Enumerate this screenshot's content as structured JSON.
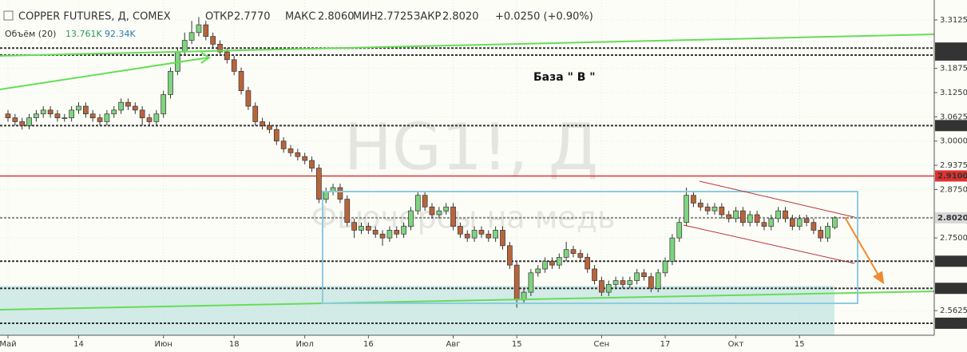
{
  "chart_data": {
    "type": "candlestick",
    "title": "COPPER FUTURES, Д, COMEX",
    "ohlc_labels": {
      "open": "ОТКР",
      "high": "МАКС",
      "low": "МИН",
      "close": "ЗАКР"
    },
    "last_value_labels": {
      "open": "2.7770",
      "high": "2.8060",
      "low": "2.7725",
      "close": "2.8020",
      "change": "+0.0250 (+0.90%)"
    },
    "volume_label": "Объём (20)",
    "volume_value_labels": [
      "13.761K",
      "92.34K"
    ],
    "watermark": [
      "HG1!, Д",
      "Фьючерсы на медь"
    ],
    "annotation": "База  \" В \"",
    "up_color": "#7fd47f",
    "down_color": "#b9643b",
    "ylim": [
      2.499,
      3.364
    ],
    "yticks": [
      3.3125,
      3.1875,
      {
        "value": 3.125,
        "label": "3.1250"
      },
      3.0625,
      {
        "value": 3.0,
        "label": "3.0000"
      },
      2.9375,
      {
        "value": 2.875,
        "label": "2.8750"
      },
      {
        "value": 2.75,
        "label": "2.7500"
      },
      2.5625
    ],
    "levels": [
      {
        "value": 3.24,
        "label": "3.2400",
        "color": "#333"
      },
      {
        "value": 3.222,
        "label": "3.2220",
        "color": "#333"
      },
      {
        "value": 3.04,
        "label": "3.0400",
        "color": "#333"
      },
      {
        "value": 2.91,
        "label": "2.9100",
        "color": "#e03030"
      },
      {
        "value": 2.802,
        "label": "2.8020",
        "color": "#888"
      },
      {
        "value": 2.69,
        "label": "2.6900",
        "color": "#333"
      },
      {
        "value": 2.62,
        "label": "2.6200",
        "color": "#333"
      },
      {
        "value": 2.53,
        "label": "2.5300",
        "color": "#333"
      }
    ],
    "categories": [
      "Май",
      null,
      null,
      null,
      null,
      null,
      null,
      null,
      null,
      null,
      "14",
      null,
      null,
      null,
      null,
      null,
      null,
      null,
      null,
      null,
      null,
      null,
      "Июн",
      null,
      null,
      null,
      null,
      null,
      null,
      null,
      null,
      null,
      "18",
      null,
      null,
      null,
      null,
      null,
      null,
      null,
      null,
      null,
      "Июл",
      null,
      null,
      null,
      null,
      null,
      null,
      null,
      null,
      "16",
      null,
      null,
      null,
      null,
      null,
      null,
      null,
      null,
      null,
      null,
      null,
      "Авг",
      null,
      null,
      null,
      null,
      null,
      null,
      null,
      null,
      "15",
      null,
      null,
      null,
      null,
      null,
      null,
      null,
      null,
      null,
      null,
      null,
      "Сен",
      null,
      null,
      null,
      null,
      null,
      null,
      null,
      null,
      "17",
      null,
      null,
      null,
      null,
      null,
      null,
      null,
      null,
      null,
      "Окт",
      null,
      null,
      null,
      null,
      null,
      null,
      null,
      null,
      "15",
      null,
      null,
      null,
      null,
      null
    ],
    "open": [
      3.07,
      3.06,
      3.05,
      3.04,
      3.06,
      3.07,
      3.08,
      3.07,
      3.06,
      3.06,
      3.08,
      3.09,
      3.07,
      3.06,
      3.05,
      3.07,
      3.08,
      3.1,
      3.09,
      3.08,
      3.06,
      3.05,
      3.07,
      3.12,
      3.18,
      3.23,
      3.26,
      3.28,
      3.3,
      3.27,
      3.25,
      3.23,
      3.21,
      3.18,
      3.13,
      3.09,
      3.05,
      3.04,
      3.03,
      3.0,
      2.98,
      2.97,
      2.96,
      2.95,
      2.93,
      2.85,
      2.87,
      2.88,
      2.85,
      2.79,
      2.77,
      2.78,
      2.77,
      2.76,
      2.75,
      2.77,
      2.76,
      2.78,
      2.82,
      2.86,
      2.83,
      2.81,
      2.82,
      2.83,
      2.78,
      2.76,
      2.75,
      2.77,
      2.76,
      2.75,
      2.77,
      2.73,
      2.68,
      2.59,
      2.61,
      2.66,
      2.67,
      2.69,
      2.68,
      2.7,
      2.72,
      2.71,
      2.7,
      2.67,
      2.64,
      2.61,
      2.63,
      2.64,
      2.63,
      2.64,
      2.66,
      2.65,
      2.62,
      2.66,
      2.69,
      2.75,
      2.79,
      2.86,
      2.84,
      2.83,
      2.82,
      2.83,
      2.81,
      2.8,
      2.82,
      2.79,
      2.81,
      2.79,
      2.78,
      2.8,
      2.82,
      2.8,
      2.78,
      2.8,
      2.79,
      2.77,
      2.75,
      2.777
    ],
    "high": [
      3.08,
      3.07,
      3.06,
      3.07,
      3.08,
      3.09,
      3.09,
      3.08,
      3.07,
      3.09,
      3.1,
      3.1,
      3.08,
      3.07,
      3.08,
      3.09,
      3.11,
      3.11,
      3.1,
      3.09,
      3.07,
      3.08,
      3.13,
      3.19,
      3.24,
      3.28,
      3.31,
      3.32,
      3.31,
      3.28,
      3.26,
      3.24,
      3.22,
      3.19,
      3.14,
      3.1,
      3.06,
      3.05,
      3.04,
      3.01,
      2.99,
      2.98,
      2.97,
      2.96,
      2.94,
      2.88,
      2.89,
      2.89,
      2.86,
      2.8,
      2.79,
      2.79,
      2.78,
      2.77,
      2.78,
      2.78,
      2.79,
      2.83,
      2.87,
      2.87,
      2.84,
      2.83,
      2.84,
      2.84,
      2.79,
      2.77,
      2.78,
      2.78,
      2.77,
      2.78,
      2.78,
      2.74,
      2.69,
      2.62,
      2.67,
      2.68,
      2.7,
      2.7,
      2.71,
      2.74,
      2.73,
      2.72,
      2.71,
      2.68,
      2.65,
      2.64,
      2.65,
      2.65,
      2.65,
      2.67,
      2.67,
      2.66,
      2.67,
      2.7,
      2.76,
      2.8,
      2.88,
      2.87,
      2.85,
      2.84,
      2.84,
      2.84,
      2.82,
      2.83,
      2.83,
      2.82,
      2.82,
      2.8,
      2.81,
      2.83,
      2.83,
      2.81,
      2.81,
      2.81,
      2.8,
      2.78,
      2.79,
      2.806
    ],
    "low": [
      3.05,
      3.04,
      3.03,
      3.03,
      3.05,
      3.06,
      3.06,
      3.05,
      3.05,
      3.05,
      3.07,
      3.06,
      3.05,
      3.04,
      3.04,
      3.06,
      3.07,
      3.08,
      3.07,
      3.04,
      3.04,
      3.04,
      3.06,
      3.11,
      3.17,
      3.22,
      3.25,
      3.27,
      3.26,
      3.24,
      3.22,
      3.2,
      3.17,
      3.12,
      3.08,
      3.04,
      3.03,
      3.02,
      2.99,
      2.97,
      2.96,
      2.95,
      2.94,
      2.92,
      2.84,
      2.84,
      2.86,
      2.84,
      2.78,
      2.75,
      2.76,
      2.76,
      2.75,
      2.73,
      2.74,
      2.75,
      2.75,
      2.77,
      2.81,
      2.82,
      2.8,
      2.8,
      2.81,
      2.77,
      2.75,
      2.74,
      2.74,
      2.75,
      2.74,
      2.74,
      2.72,
      2.67,
      2.57,
      2.58,
      2.6,
      2.65,
      2.66,
      2.67,
      2.67,
      2.69,
      2.7,
      2.69,
      2.66,
      2.63,
      2.6,
      2.6,
      2.62,
      2.62,
      2.62,
      2.63,
      2.64,
      2.61,
      2.61,
      2.65,
      2.68,
      2.74,
      2.78,
      2.83,
      2.82,
      2.81,
      2.81,
      2.8,
      2.79,
      2.79,
      2.78,
      2.78,
      2.78,
      2.77,
      2.77,
      2.79,
      2.79,
      2.77,
      2.77,
      2.78,
      2.76,
      2.74,
      2.74,
      2.7725
    ],
    "close": [
      3.06,
      3.05,
      3.04,
      3.06,
      3.07,
      3.08,
      3.07,
      3.06,
      3.06,
      3.08,
      3.09,
      3.07,
      3.06,
      3.05,
      3.07,
      3.08,
      3.1,
      3.09,
      3.08,
      3.06,
      3.05,
      3.07,
      3.12,
      3.18,
      3.23,
      3.26,
      3.28,
      3.3,
      3.27,
      3.25,
      3.23,
      3.21,
      3.18,
      3.13,
      3.09,
      3.05,
      3.04,
      3.03,
      3.0,
      2.98,
      2.97,
      2.96,
      2.95,
      2.93,
      2.85,
      2.87,
      2.88,
      2.85,
      2.79,
      2.77,
      2.78,
      2.77,
      2.76,
      2.75,
      2.77,
      2.76,
      2.78,
      2.82,
      2.86,
      2.83,
      2.81,
      2.82,
      2.83,
      2.78,
      2.76,
      2.75,
      2.77,
      2.76,
      2.75,
      2.77,
      2.73,
      2.68,
      2.59,
      2.61,
      2.66,
      2.67,
      2.69,
      2.68,
      2.7,
      2.72,
      2.71,
      2.7,
      2.67,
      2.64,
      2.61,
      2.63,
      2.64,
      2.63,
      2.64,
      2.66,
      2.65,
      2.62,
      2.66,
      2.69,
      2.75,
      2.79,
      2.86,
      2.84,
      2.83,
      2.82,
      2.83,
      2.81,
      2.8,
      2.82,
      2.79,
      2.81,
      2.79,
      2.78,
      2.8,
      2.82,
      2.8,
      2.78,
      2.8,
      2.79,
      2.77,
      2.75,
      2.78,
      2.802
    ],
    "grid": true
  }
}
